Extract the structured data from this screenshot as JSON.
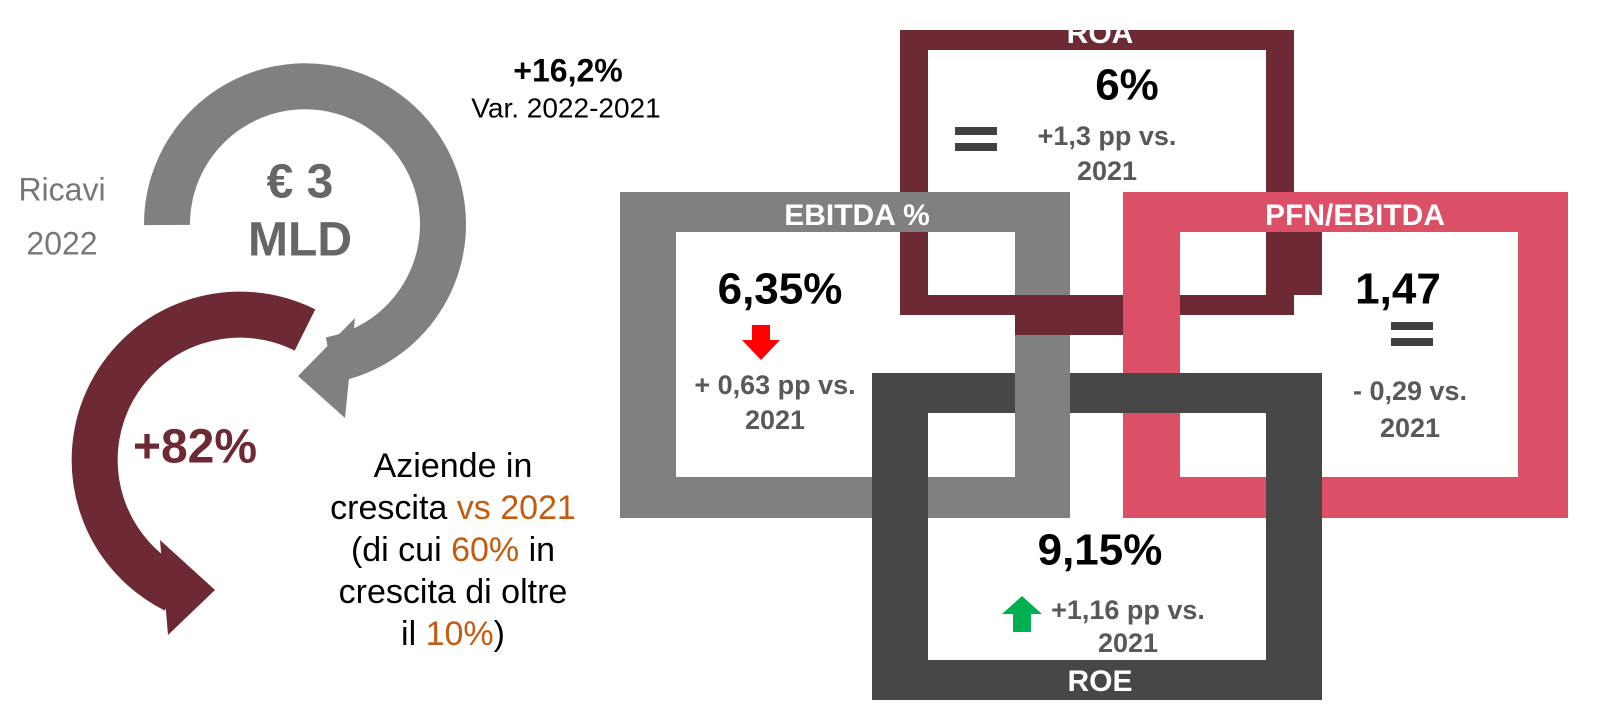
{
  "revenue": {
    "label": [
      "Ricavi",
      "2022"
    ],
    "amount": [
      "€ 3",
      "MLD"
    ],
    "change": "+16,2%",
    "change_note": "Var. 2022-2021"
  },
  "growth": {
    "share": "+82%",
    "lines": [
      [
        "Aziende in"
      ],
      [
        "crescita ",
        "vs 2021"
      ],
      [
        "(di cui ",
        "60%",
        " in"
      ],
      [
        "crescita di oltre"
      ],
      [
        "il ",
        "10%",
        ")"
      ]
    ]
  },
  "kpis": {
    "roa": {
      "title": "ROA",
      "value": "6%",
      "change": [
        "+1,3 pp vs.",
        "2021"
      ]
    },
    "ebitda": {
      "title": "EBITDA %",
      "value": "6,35%",
      "change": [
        "+ 0,63 pp vs.",
        "2021"
      ]
    },
    "pfn": {
      "title": "PFN/EBITDA",
      "value": "1,47",
      "change": [
        "- 0,29 vs.",
        "2021"
      ]
    },
    "roe": {
      "title": "ROE",
      "value": "9,15%",
      "change": [
        "+1,16 pp vs.",
        "2021"
      ]
    }
  }
}
